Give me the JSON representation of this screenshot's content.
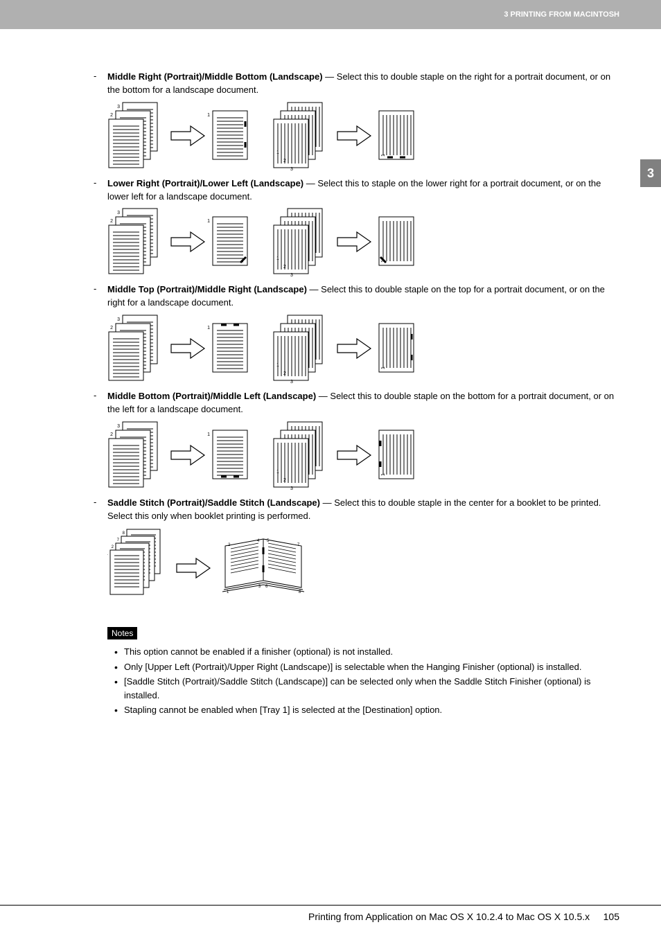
{
  "header": {
    "chapter": "3 PRINTING FROM MACINTOSH",
    "side_tab": "3"
  },
  "options": [
    {
      "title": "Middle Right (Portrait)/Middle Bottom (Landscape)",
      "desc": " — Select this to double staple on the right for a portrait document, or on the bottom for a landscape document.",
      "diagram": "middle_right"
    },
    {
      "title": "Lower Right (Portrait)/Lower Left (Landscape)",
      "desc": " — Select this to staple on the lower right for a portrait document, or on the lower left for a landscape document.",
      "diagram": "lower_right"
    },
    {
      "title": "Middle Top (Portrait)/Middle Right (Landscape)",
      "desc": " — Select this to double staple on the top for a portrait document, or on the right for a landscape document.",
      "diagram": "middle_top"
    },
    {
      "title": "Middle Bottom (Portrait)/Middle Left (Landscape)",
      "desc": " — Select this to double staple on the bottom for a portrait document, or on the left for a landscape document.",
      "diagram": "middle_bottom"
    },
    {
      "title": "Saddle Stitch (Portrait)/Saddle Stitch (Landscape)",
      "desc": " — Select this to double staple in the center for a booklet to be printed.  Select this only when booklet printing is performed.",
      "diagram": "saddle"
    }
  ],
  "notes": {
    "label": "Notes",
    "items": [
      "This option cannot be enabled if a finisher (optional) is not installed.",
      "Only [Upper Left (Portrait)/Upper Right (Landscape)] is selectable when the Hanging Finisher (optional) is installed.",
      "[Saddle Stitch (Portrait)/Saddle Stitch (Landscape)] can be selected only when the Saddle Stitch Finisher (optional) is installed.",
      "Stapling cannot be enabled when [Tray 1] is selected at the [Destination] option."
    ]
  },
  "footer": {
    "text": "Printing from Application on Mac OS X 10.2.4 to Mac OS X 10.5.x",
    "page": "105"
  },
  "diagrams": {
    "page_stroke": "#000000",
    "line_stroke": "#000000",
    "staple_color": "#000000",
    "arrow_fill": "#ffffff",
    "arrow_stroke": "#000000"
  }
}
